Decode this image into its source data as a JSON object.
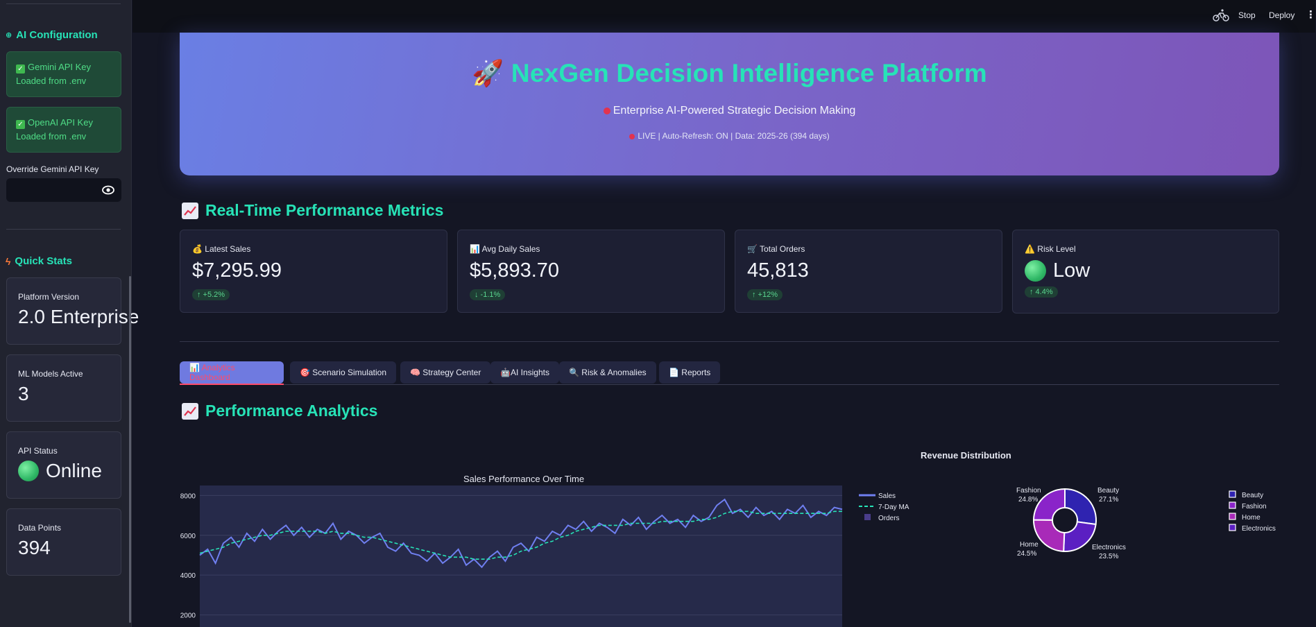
{
  "sidebar": {
    "ai_config_title": "AI Configuration",
    "gemini": {
      "title": "Gemini API Key",
      "status": "Loaded from .env"
    },
    "openai": {
      "title": "OpenAI API Key",
      "status": "Loaded from .env"
    },
    "override_label": "Override Gemini API Key",
    "override_value": "",
    "quick_stats_title": "Quick Stats",
    "stats": [
      {
        "label": "Platform Version",
        "value": "2.0 Enterprise"
      },
      {
        "label": "ML Models Active",
        "value": "3"
      },
      {
        "label": "API Status",
        "value": "Online"
      },
      {
        "label": "Data Points",
        "value": "394"
      }
    ]
  },
  "topbar": {
    "stop_label": "Stop",
    "deploy_label": "Deploy"
  },
  "hero": {
    "title": "🚀 NexGen Decision Intelligence Platform",
    "subtitle": "Enterprise AI-Powered Strategic Decision Making",
    "live": "LIVE | Auto-Refresh: ON | Data: 2025-26 (394 days)"
  },
  "metrics_section": {
    "title": "Real-Time Performance Metrics"
  },
  "metrics": [
    {
      "label": "💰 Latest Sales",
      "value": "$7,295.99",
      "delta": "↑ +5.2%"
    },
    {
      "label": "📊 Avg Daily Sales",
      "value": "$5,893.70",
      "delta": "↓ -1.1%"
    },
    {
      "label": "🛒 Total Orders",
      "value": "45,813",
      "delta": "↑ +12%"
    },
    {
      "label": "⚠️ Risk Level",
      "value": "Low",
      "delta": "↑ 4.4%"
    }
  ],
  "tabs": [
    {
      "label": "📊 Analytics Dashboard"
    },
    {
      "label": "🎯 Scenario Simulation"
    },
    {
      "label": "🧠 Strategy Center"
    },
    {
      "label": "🤖AI Insights"
    },
    {
      "label": "🔍 Risk & Anomalies"
    },
    {
      "label": "📄 Reports"
    }
  ],
  "analytics_section": {
    "title": "Performance Analytics"
  },
  "colors": {
    "accent": "#27e3b7",
    "sales": "#6f7ff0",
    "ma": "#27e3b7"
  },
  "chart_data": [
    {
      "type": "line",
      "title": "Sales Performance Over Time",
      "ylim": [
        0,
        8500
      ],
      "yticks": [
        "8000",
        "6000",
        "4000",
        "2000"
      ],
      "legend": [
        "Sales",
        "7-Day MA",
        "Orders"
      ],
      "series": [
        {
          "name": "Sales",
          "values": [
            5000,
            5300,
            4600,
            5600,
            5900,
            5400,
            6100,
            5700,
            6300,
            5800,
            6200,
            6500,
            6000,
            6400,
            5900,
            6300,
            6100,
            6600,
            5800,
            6200,
            6000,
            5600,
            5900,
            6100,
            5400,
            5200,
            5600,
            5100,
            5000,
            4700,
            5100,
            4600,
            4900,
            5300,
            4500,
            4800,
            4400,
            4900,
            5200,
            4700,
            5400,
            5600,
            5200,
            5900,
            5700,
            6200,
            6000,
            6500,
            6300,
            6700,
            6200,
            6600,
            6400,
            6100,
            6800,
            6500,
            6900,
            6300,
            6700,
            7000,
            6600,
            6800,
            6400,
            7000,
            6700,
            6900,
            7500,
            7800,
            7100,
            7300,
            6900,
            7400,
            7000,
            7200,
            6800,
            7300,
            7100,
            7500,
            6900,
            7200,
            7000,
            7400,
            7300
          ]
        },
        {
          "name": "7-Day MA",
          "values": [
            5100,
            5200,
            5300,
            5400,
            5600,
            5700,
            5800,
            5900,
            6000,
            6000,
            6100,
            6200,
            6200,
            6200,
            6200,
            6200,
            6100,
            6200,
            6100,
            6100,
            6000,
            5900,
            5900,
            5800,
            5700,
            5600,
            5500,
            5400,
            5300,
            5200,
            5100,
            5000,
            4900,
            4900,
            4900,
            4800,
            4800,
            4800,
            4900,
            4900,
            5000,
            5200,
            5300,
            5400,
            5600,
            5700,
            5900,
            6000,
            6200,
            6300,
            6400,
            6500,
            6500,
            6500,
            6500,
            6600,
            6600,
            6600,
            6600,
            6700,
            6700,
            6700,
            6700,
            6700,
            6800,
            6800,
            6900,
            7100,
            7200,
            7200,
            7200,
            7100,
            7100,
            7100,
            7100,
            7100,
            7100,
            7100,
            7100,
            7100,
            7100,
            7200,
            7200
          ]
        }
      ]
    },
    {
      "type": "pie",
      "title": "Revenue Distribution",
      "categories": [
        "Beauty",
        "Fashion",
        "Home",
        "Electronics"
      ],
      "values": [
        27.1,
        24.8,
        24.5,
        23.5
      ],
      "labels": [
        {
          "name": "Beauty",
          "pct": "27.1%"
        },
        {
          "name": "Fashion",
          "pct": "24.8%"
        },
        {
          "name": "Home",
          "pct": "24.5%"
        },
        {
          "name": "Electronics",
          "pct": "23.5%"
        }
      ],
      "colors": [
        "#2f23b0",
        "#8a24c9",
        "#a82ab8",
        "#5b1fc2"
      ]
    }
  ]
}
